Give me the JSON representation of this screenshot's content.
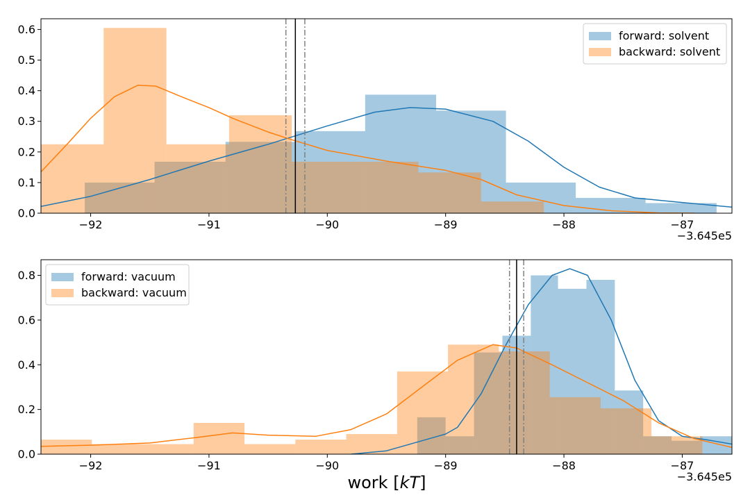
{
  "chart_data": [
    {
      "type": "histogram",
      "xlim": [
        -92.42,
        -86.58
      ],
      "ylim": [
        0,
        0.635
      ],
      "xticks": [
        -92,
        -91,
        -90,
        -89,
        -88,
        -87
      ],
      "xtick_labels": [
        "−92",
        "−91",
        "−90",
        "−89",
        "−88",
        "−87"
      ],
      "yticks": [
        0.0,
        0.1,
        0.2,
        0.3,
        0.4,
        0.5,
        0.6
      ],
      "ytick_labels": [
        "0.0",
        "0.1",
        "0.2",
        "0.3",
        "0.4",
        "0.5",
        "0.6"
      ],
      "offset_label": "−3.645e5",
      "legend_position": "upper right",
      "vlines": {
        "solid": -90.27,
        "dashdot": [
          -90.35,
          -90.19
        ]
      },
      "series": [
        {
          "name": "forward: solvent",
          "color": "#1f77b4",
          "bin_edges": [
            -92.05,
            -91.46,
            -90.86,
            -90.27,
            -89.68,
            -89.08,
            -88.49,
            -87.9,
            -87.31,
            -86.71
          ],
          "values": [
            0.1,
            0.168,
            0.233,
            0.268,
            0.387,
            0.335,
            0.1,
            0.05,
            0.033
          ],
          "kde": [
            [
              -92.42,
              0.022
            ],
            [
              -92.0,
              0.055
            ],
            [
              -91.5,
              0.11
            ],
            [
              -91.0,
              0.17
            ],
            [
              -90.5,
              0.225
            ],
            [
              -90.0,
              0.285
            ],
            [
              -89.6,
              0.33
            ],
            [
              -89.3,
              0.345
            ],
            [
              -89.0,
              0.34
            ],
            [
              -88.6,
              0.3
            ],
            [
              -88.3,
              0.235
            ],
            [
              -88.0,
              0.15
            ],
            [
              -87.7,
              0.085
            ],
            [
              -87.4,
              0.05
            ],
            [
              -87.0,
              0.035
            ],
            [
              -86.58,
              0.02
            ]
          ]
        },
        {
          "name": "backward: solvent",
          "color": "#ff7f0e",
          "bin_edges": [
            -92.42,
            -91.89,
            -91.36,
            -90.83,
            -90.3,
            -89.77,
            -89.23,
            -88.7,
            -88.17
          ],
          "values": [
            0.225,
            0.605,
            0.225,
            0.32,
            0.168,
            0.168,
            0.133,
            0.038
          ],
          "kde": [
            [
              -92.42,
              0.135
            ],
            [
              -92.2,
              0.225
            ],
            [
              -92.0,
              0.31
            ],
            [
              -91.8,
              0.38
            ],
            [
              -91.6,
              0.418
            ],
            [
              -91.45,
              0.415
            ],
            [
              -91.2,
              0.375
            ],
            [
              -91.0,
              0.345
            ],
            [
              -90.8,
              0.31
            ],
            [
              -90.5,
              0.265
            ],
            [
              -90.3,
              0.24
            ],
            [
              -90.0,
              0.205
            ],
            [
              -89.5,
              0.17
            ],
            [
              -89.0,
              0.14
            ],
            [
              -88.7,
              0.11
            ],
            [
              -88.4,
              0.06
            ],
            [
              -88.0,
              0.025
            ],
            [
              -87.6,
              0.008
            ],
            [
              -87.2,
              0.001
            ],
            [
              -86.9,
              0.0
            ]
          ]
        }
      ]
    },
    {
      "type": "histogram",
      "xlim": [
        -92.42,
        -86.58
      ],
      "ylim": [
        0,
        0.87
      ],
      "xticks": [
        -92,
        -91,
        -90,
        -89,
        -88,
        -87
      ],
      "xtick_labels": [
        "−92",
        "−91",
        "−90",
        "−89",
        "−88",
        "−87"
      ],
      "yticks": [
        0.0,
        0.2,
        0.4,
        0.6,
        0.8
      ],
      "ytick_labels": [
        "0.0",
        "0.2",
        "0.4",
        "0.6",
        "0.8"
      ],
      "offset_label": "−3.645e5",
      "xlabel": "work [kT]",
      "legend_position": "upper left",
      "vlines": {
        "solid": -88.4,
        "dashdot": [
          -88.46,
          -88.34
        ]
      },
      "series": [
        {
          "name": "forward: vacuum",
          "color": "#1f77b4",
          "bin_edges": [
            -89.24,
            -89.0,
            -88.76,
            -88.52,
            -88.28,
            -88.05,
            -87.81,
            -87.57,
            -87.33,
            -87.09,
            -86.85,
            -86.58
          ],
          "values": [
            0.165,
            0.08,
            0.455,
            0.53,
            0.8,
            0.74,
            0.78,
            0.285,
            0.08,
            0.06,
            0.08
          ],
          "kde": [
            [
              -89.8,
              0.0
            ],
            [
              -89.5,
              0.015
            ],
            [
              -89.2,
              0.06
            ],
            [
              -89.0,
              0.09
            ],
            [
              -88.9,
              0.12
            ],
            [
              -88.7,
              0.27
            ],
            [
              -88.5,
              0.48
            ],
            [
              -88.3,
              0.67
            ],
            [
              -88.1,
              0.8
            ],
            [
              -87.95,
              0.83
            ],
            [
              -87.8,
              0.8
            ],
            [
              -87.6,
              0.6
            ],
            [
              -87.4,
              0.33
            ],
            [
              -87.2,
              0.15
            ],
            [
              -87.0,
              0.08
            ],
            [
              -86.8,
              0.065
            ],
            [
              -86.58,
              0.045
            ]
          ]
        },
        {
          "name": "backward: vacuum",
          "color": "#ff7f0e",
          "bin_edges": [
            -92.42,
            -91.99,
            -91.56,
            -91.13,
            -90.7,
            -90.27,
            -89.84,
            -89.41,
            -88.98,
            -88.55,
            -88.12,
            -87.69,
            -87.26,
            -86.83
          ],
          "values": [
            0.065,
            0.045,
            0.045,
            0.14,
            0.045,
            0.065,
            0.09,
            0.37,
            0.49,
            0.46,
            0.255,
            0.205,
            0.08
          ],
          "kde": [
            [
              -92.42,
              0.035
            ],
            [
              -92.0,
              0.04
            ],
            [
              -91.5,
              0.05
            ],
            [
              -91.1,
              0.075
            ],
            [
              -90.8,
              0.095
            ],
            [
              -90.5,
              0.085
            ],
            [
              -90.1,
              0.08
            ],
            [
              -89.8,
              0.11
            ],
            [
              -89.5,
              0.18
            ],
            [
              -89.2,
              0.3
            ],
            [
              -88.9,
              0.42
            ],
            [
              -88.6,
              0.49
            ],
            [
              -88.4,
              0.475
            ],
            [
              -88.1,
              0.4
            ],
            [
              -87.8,
              0.32
            ],
            [
              -87.5,
              0.24
            ],
            [
              -87.2,
              0.14
            ],
            [
              -86.9,
              0.07
            ],
            [
              -86.58,
              0.03
            ]
          ]
        }
      ]
    }
  ]
}
